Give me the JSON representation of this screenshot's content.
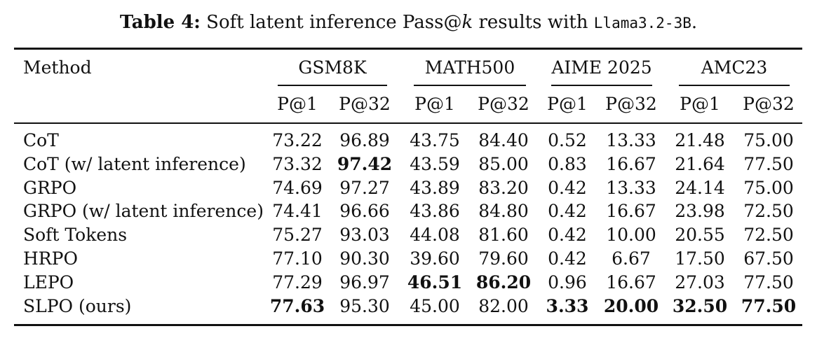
{
  "caption": {
    "label": "Table 4:",
    "text_before": " Soft latent inference Pass@",
    "k": "k",
    "text_after": " results with ",
    "model": "Llama3.2-3B",
    "period": "."
  },
  "header": {
    "method": "Method",
    "groups": [
      "GSM8K",
      "MATH500",
      "AIME 2025",
      "AMC23"
    ],
    "subcols": [
      "P@1",
      "P@32",
      "P@1",
      "P@32",
      "P@1",
      "P@32",
      "P@1",
      "P@32"
    ]
  },
  "rows": [
    {
      "method": "CoT",
      "values": [
        "73.22",
        "96.89",
        "43.75",
        "84.40",
        "0.52",
        "13.33",
        "21.48",
        "75.00"
      ],
      "bold": [
        false,
        false,
        false,
        false,
        false,
        false,
        false,
        false
      ]
    },
    {
      "method": "CoT (w/ latent inference)",
      "values": [
        "73.32",
        "97.42",
        "43.59",
        "85.00",
        "0.83",
        "16.67",
        "21.64",
        "77.50"
      ],
      "bold": [
        false,
        true,
        false,
        false,
        false,
        false,
        false,
        false
      ]
    },
    {
      "method": "GRPO",
      "values": [
        "74.69",
        "97.27",
        "43.89",
        "83.20",
        "0.42",
        "13.33",
        "24.14",
        "75.00"
      ],
      "bold": [
        false,
        false,
        false,
        false,
        false,
        false,
        false,
        false
      ]
    },
    {
      "method": "GRPO (w/ latent inference)",
      "values": [
        "74.41",
        "96.66",
        "43.86",
        "84.80",
        "0.42",
        "16.67",
        "23.98",
        "72.50"
      ],
      "bold": [
        false,
        false,
        false,
        false,
        false,
        false,
        false,
        false
      ]
    },
    {
      "method": "Soft Tokens",
      "values": [
        "75.27",
        "93.03",
        "44.08",
        "81.60",
        "0.42",
        "10.00",
        "20.55",
        "72.50"
      ],
      "bold": [
        false,
        false,
        false,
        false,
        false,
        false,
        false,
        false
      ]
    },
    {
      "method": "HRPO",
      "values": [
        "77.10",
        "90.30",
        "39.60",
        "79.60",
        "0.42",
        "6.67",
        "17.50",
        "67.50"
      ],
      "bold": [
        false,
        false,
        false,
        false,
        false,
        false,
        false,
        false
      ]
    },
    {
      "method": "LEPO",
      "values": [
        "77.29",
        "96.97",
        "46.51",
        "86.20",
        "0.96",
        "16.67",
        "27.03",
        "77.50"
      ],
      "bold": [
        false,
        false,
        true,
        true,
        false,
        false,
        false,
        false
      ]
    },
    {
      "method": "SLPO (ours)",
      "values": [
        "77.63",
        "95.30",
        "45.00",
        "82.00",
        "3.33",
        "20.00",
        "32.50",
        "77.50"
      ],
      "bold": [
        true,
        false,
        false,
        false,
        true,
        true,
        true,
        true
      ]
    }
  ]
}
